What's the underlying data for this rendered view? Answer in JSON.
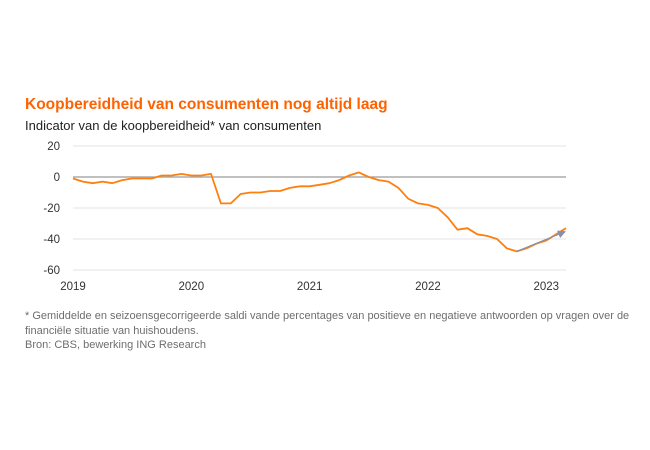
{
  "colors": {
    "accent": "#FF6200",
    "line": "#FF7F0E",
    "zero_line": "#9a9a9a",
    "grid": "#e3e3e3",
    "trend_arrow": "#8a8fa8"
  },
  "header": {
    "title": "Koopbereidheid van consumenten nog altijd laag",
    "subtitle": "Indicator van de koopbereidheid* van consumenten"
  },
  "footer": {
    "footnote": "* Gemiddelde en seizoensgecorrigeerde saldi vande percentages van positieve en negatieve antwoorden op vragen over de financiële situatie van huishoudens.",
    "source": "Bron: CBS, bewerking ING Research"
  },
  "chart_data": {
    "type": "line",
    "title": "Koopbereidheid van consumenten nog altijd laag",
    "subtitle": "Indicator van de koopbereidheid* van consumenten",
    "xlabel": "",
    "ylabel": "",
    "ylim": [
      -60,
      20
    ],
    "yticks": [
      20,
      0,
      -20,
      -40,
      -60
    ],
    "xlim": [
      "2019-01",
      "2023-03"
    ],
    "xticks": [
      "2019",
      "2020",
      "2021",
      "2022",
      "2023"
    ],
    "grid": "horizontal",
    "legend": "none",
    "series": [
      {
        "x": [
          "2019-01",
          "2019-02",
          "2019-03",
          "2019-04",
          "2019-05",
          "2019-06",
          "2019-07",
          "2019-08",
          "2019-09",
          "2019-10",
          "2019-11",
          "2019-12",
          "2020-01",
          "2020-02",
          "2020-03",
          "2020-04",
          "2020-05",
          "2020-06",
          "2020-07",
          "2020-08",
          "2020-09",
          "2020-10",
          "2020-11",
          "2020-12",
          "2021-01",
          "2021-02",
          "2021-03",
          "2021-04",
          "2021-05",
          "2021-06",
          "2021-07",
          "2021-08",
          "2021-09",
          "2021-10",
          "2021-11",
          "2021-12",
          "2022-01",
          "2022-02",
          "2022-03",
          "2022-04",
          "2022-05",
          "2022-06",
          "2022-07",
          "2022-08",
          "2022-09",
          "2022-10",
          "2022-11",
          "2022-12",
          "2023-01",
          "2023-02",
          "2023-03"
        ],
        "values": [
          -1,
          -3,
          -4,
          -3,
          -4,
          -2,
          -1,
          -1,
          -1,
          1,
          1,
          2,
          1,
          1,
          2,
          -17,
          -17,
          -11,
          -10,
          -10,
          -9,
          -9,
          -7,
          -6,
          -6,
          -5,
          -4,
          -2,
          1,
          3,
          0,
          -2,
          -3,
          -7,
          -14,
          -17,
          -18,
          -20,
          -26,
          -34,
          -33,
          -37,
          -38,
          -40,
          -46,
          -48,
          -46,
          -43,
          -41,
          -37,
          -33
        ]
      }
    ],
    "annotations": [
      {
        "type": "trend-arrow",
        "from": {
          "x": "2022-10",
          "y": -48
        },
        "to": {
          "x": "2023-03",
          "y": -35
        }
      }
    ]
  }
}
